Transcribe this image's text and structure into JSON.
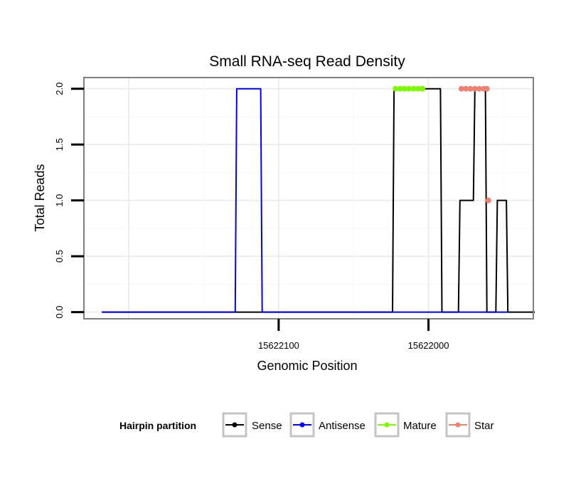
{
  "chart_data": {
    "type": "line",
    "title": "Small RNA-seq Read Density",
    "xlabel": "Genomic Position",
    "ylabel": "Total Reads",
    "x_reversed": true,
    "xlim": [
      15622230,
      15621930
    ],
    "ylim": [
      -0.06,
      2.1
    ],
    "x_ticks": [
      15622100,
      15622000
    ],
    "x_tick_labels": [
      "15622100",
      "15622000"
    ],
    "y_ticks": [
      0.0,
      0.5,
      1.0,
      1.5,
      2.0
    ],
    "y_tick_labels": [
      "0.0",
      "0.5",
      "1.0",
      "1.5",
      "2.0"
    ],
    "grid": true,
    "legend": {
      "title": "Hairpin partition",
      "position": "bottom",
      "entries": [
        "Sense",
        "Antisense",
        "Mature",
        "Star"
      ]
    },
    "series": [
      {
        "name": "Sense",
        "color": "#000000",
        "style": "line",
        "x": [
          15622218,
          15622083,
          15622024,
          15622023,
          15621992,
          15621991,
          15621980,
          15621979,
          15621970,
          15621969,
          15621962,
          15621961,
          15621955,
          15621954,
          15621948,
          15621947,
          15621929
        ],
        "y": [
          0,
          0,
          0,
          2,
          2,
          0,
          0,
          1,
          1,
          2,
          2,
          0,
          0,
          1,
          1,
          0,
          0
        ]
      },
      {
        "name": "Antisense",
        "color": "#0000ff",
        "style": "line",
        "x": [
          15622218,
          15622129,
          15622128,
          15622112,
          15622111,
          15621947
        ],
        "y": [
          0,
          0,
          2,
          2,
          0,
          0
        ]
      },
      {
        "name": "Mature",
        "color": "#7cfc00",
        "style": "points",
        "x": [
          15622022,
          15622019,
          15622016,
          15622013,
          15622010,
          15622007,
          15622004
        ],
        "y": [
          2,
          2,
          2,
          2,
          2,
          2,
          2
        ]
      },
      {
        "name": "Star",
        "color": "#f08070",
        "style": "points",
        "x": [
          15621978,
          15621975,
          15621972,
          15621969,
          15621966,
          15621963,
          15621961,
          15621960
        ],
        "y": [
          2,
          2,
          2,
          2,
          2,
          2,
          2,
          1
        ]
      }
    ]
  }
}
